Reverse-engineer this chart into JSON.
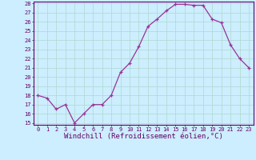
{
  "x": [
    0,
    1,
    2,
    3,
    4,
    5,
    6,
    7,
    8,
    9,
    10,
    11,
    12,
    13,
    14,
    15,
    16,
    17,
    18,
    19,
    20,
    21,
    22,
    23
  ],
  "y": [
    18.0,
    17.7,
    16.5,
    17.0,
    15.0,
    16.0,
    17.0,
    17.0,
    18.0,
    20.5,
    21.5,
    23.3,
    25.5,
    26.3,
    27.2,
    27.9,
    27.9,
    27.8,
    27.8,
    26.3,
    25.9,
    23.5,
    22.0,
    21.0
  ],
  "line_color": "#993399",
  "marker": "+",
  "marker_color": "#993399",
  "bg_color": "#cceeff",
  "grid_color": "#b0d8cc",
  "xlabel": "Windchill (Refroidissement éolien,°C)",
  "ylim": [
    15,
    28
  ],
  "xlim": [
    -0.5,
    23.5
  ],
  "yticks": [
    15,
    16,
    17,
    18,
    19,
    20,
    21,
    22,
    23,
    24,
    25,
    26,
    27,
    28
  ],
  "xticks": [
    0,
    1,
    2,
    3,
    4,
    5,
    6,
    7,
    8,
    9,
    10,
    11,
    12,
    13,
    14,
    15,
    16,
    17,
    18,
    19,
    20,
    21,
    22,
    23
  ],
  "label_color": "#660066",
  "tick_fontsize": 5,
  "xlabel_fontsize": 6.5
}
